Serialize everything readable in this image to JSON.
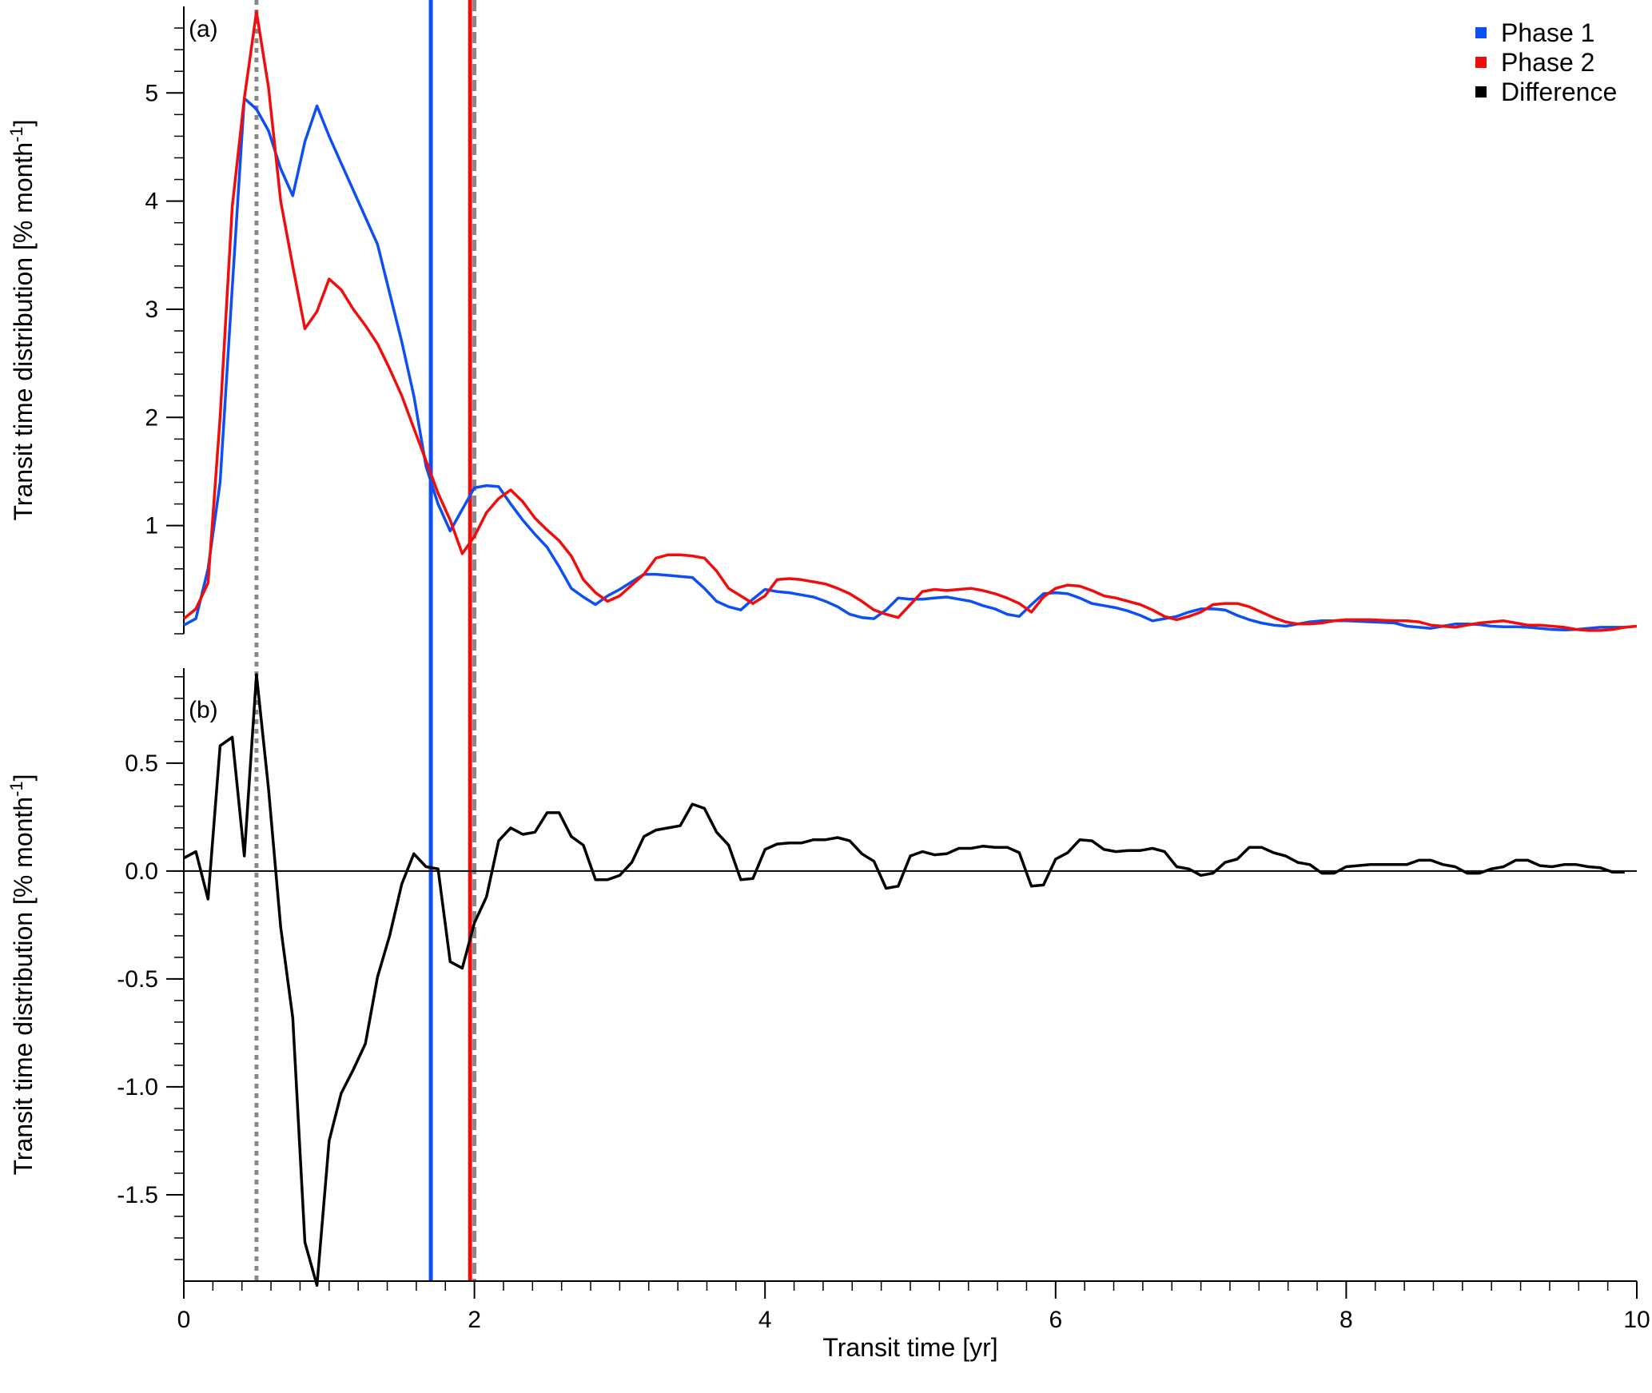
{
  "chart_data": {
    "type": "line",
    "xlabel": "Transit time [yr]",
    "xlim": [
      0,
      10
    ],
    "x_ticks": [
      0,
      2,
      4,
      6,
      8,
      10
    ],
    "x_tick_labels": [
      "0",
      "2",
      "4",
      "6",
      "8",
      "10"
    ],
    "x_step": 0.08333,
    "legend": {
      "placement": "top-right",
      "entries": [
        {
          "label": "Phase 1",
          "color": "#0d4ff2"
        },
        {
          "label": "Phase 2",
          "color": "#f20d0d"
        },
        {
          "label": "Difference",
          "color": "#000000"
        }
      ]
    },
    "vertical_markers": [
      {
        "x": 0.5,
        "style": "dotted",
        "color": "#888888"
      },
      {
        "x": 1.7,
        "style": "solid",
        "color": "#0d4ff2"
      },
      {
        "x": 1.97,
        "style": "solid",
        "color": "#f20d0d"
      },
      {
        "x": 2.0,
        "style": "dashed",
        "color": "#888888"
      }
    ],
    "panels": [
      {
        "label": "(a)",
        "ylabel": "Transit time distribution [% month",
        "ylabel_sup": "-1",
        "ylabel_end": "]",
        "ylim": [
          0,
          5.8
        ],
        "y_ticks": [
          1,
          2,
          3,
          4,
          5
        ],
        "y_tick_labels": [
          "1",
          "2",
          "3",
          "4",
          "5"
        ],
        "series": [
          {
            "name": "Phase 1",
            "color": "#0d4ff2",
            "values": [
              0.08,
              0.14,
              0.6,
              1.4,
              3.2,
              4.95,
              4.85,
              4.65,
              4.3,
              4.05,
              4.55,
              4.88,
              4.6,
              4.35,
              4.1,
              3.85,
              3.6,
              3.15,
              2.7,
              2.2,
              1.55,
              1.2,
              0.95,
              1.15,
              1.35,
              1.37,
              1.36,
              1.2,
              1.05,
              0.92,
              0.8,
              0.62,
              0.42,
              0.34,
              0.27,
              0.35,
              0.41,
              0.48,
              0.55,
              0.55,
              0.54,
              0.53,
              0.52,
              0.42,
              0.3,
              0.25,
              0.22,
              0.32,
              0.41,
              0.39,
              0.38,
              0.36,
              0.34,
              0.3,
              0.25,
              0.18,
              0.15,
              0.14,
              0.22,
              0.33,
              0.32,
              0.32,
              0.33,
              0.34,
              0.32,
              0.3,
              0.26,
              0.23,
              0.18,
              0.16,
              0.27,
              0.37,
              0.38,
              0.37,
              0.33,
              0.28,
              0.26,
              0.24,
              0.21,
              0.17,
              0.12,
              0.14,
              0.16,
              0.2,
              0.23,
              0.23,
              0.22,
              0.17,
              0.13,
              0.1,
              0.08,
              0.07,
              0.09,
              0.11,
              0.12,
              0.12,
              0.12,
              0.115,
              0.11,
              0.105,
              0.1,
              0.07,
              0.06,
              0.05,
              0.07,
              0.09,
              0.09,
              0.085,
              0.07,
              0.065,
              0.065,
              0.06,
              0.05,
              0.04,
              0.035,
              0.04,
              0.05,
              0.06,
              0.06,
              0.06
            ]
          },
          {
            "name": "Phase 2",
            "color": "#f20d0d",
            "values": [
              0.14,
              0.23,
              0.47,
              2.0,
              3.95,
              4.95,
              5.75,
              5.05,
              4.0,
              3.4,
              2.82,
              2.98,
              3.28,
              3.18,
              3.0,
              2.85,
              2.68,
              2.45,
              2.2,
              1.9,
              1.6,
              1.3,
              1.05,
              0.74,
              0.9,
              1.12,
              1.25,
              1.33,
              1.22,
              1.07,
              0.96,
              0.86,
              0.72,
              0.5,
              0.38,
              0.3,
              0.35,
              0.45,
              0.55,
              0.7,
              0.73,
              0.73,
              0.72,
              0.7,
              0.58,
              0.42,
              0.35,
              0.28,
              0.35,
              0.5,
              0.51,
              0.5,
              0.48,
              0.46,
              0.42,
              0.37,
              0.3,
              0.22,
              0.18,
              0.15,
              0.27,
              0.39,
              0.41,
              0.4,
              0.41,
              0.42,
              0.4,
              0.37,
              0.33,
              0.28,
              0.2,
              0.34,
              0.42,
              0.45,
              0.44,
              0.4,
              0.35,
              0.33,
              0.3,
              0.27,
              0.22,
              0.16,
              0.13,
              0.16,
              0.2,
              0.27,
              0.28,
              0.28,
              0.25,
              0.2,
              0.15,
              0.11,
              0.09,
              0.09,
              0.1,
              0.12,
              0.13,
              0.13,
              0.13,
              0.125,
              0.12,
              0.12,
              0.11,
              0.08,
              0.07,
              0.06,
              0.08,
              0.1,
              0.11,
              0.12,
              0.1,
              0.08,
              0.08,
              0.07,
              0.06,
              0.04,
              0.03,
              0.03,
              0.04,
              0.06,
              0.07
            ]
          }
        ]
      },
      {
        "label": "(b)",
        "ylabel": "Transit time distribution [% month",
        "ylabel_sup": "-1",
        "ylabel_end": "]",
        "ylim": [
          -1.9,
          0.94
        ],
        "y_ticks": [
          -1.5,
          -1.0,
          -0.5,
          0.0,
          0.5
        ],
        "y_tick_labels": [
          "-1.5",
          "-1.0",
          "-0.5",
          "0.0",
          "0.5"
        ],
        "zero_line": true,
        "series": [
          {
            "name": "Difference",
            "color": "#000000",
            "values": [
              0.06,
              0.09,
              -0.13,
              0.58,
              0.62,
              0.07,
              0.91,
              0.38,
              -0.26,
              -0.68,
              -1.72,
              -1.92,
              -1.25,
              -1.03,
              -0.92,
              -0.8,
              -0.49,
              -0.3,
              -0.06,
              0.08,
              0.02,
              0.01,
              -0.42,
              -0.45,
              -0.24,
              -0.12,
              0.14,
              0.2,
              0.17,
              0.18,
              0.27,
              0.27,
              0.16,
              0.12,
              -0.04,
              -0.04,
              -0.02,
              0.04,
              0.16,
              0.19,
              0.2,
              0.21,
              0.31,
              0.29,
              0.18,
              0.12,
              -0.04,
              -0.035,
              0.1,
              0.125,
              0.13,
              0.13,
              0.145,
              0.145,
              0.155,
              0.14,
              0.08,
              0.045,
              -0.08,
              -0.07,
              0.07,
              0.09,
              0.075,
              0.08,
              0.105,
              0.105,
              0.115,
              0.11,
              0.11,
              0.085,
              -0.07,
              -0.065,
              0.055,
              0.085,
              0.145,
              0.14,
              0.1,
              0.09,
              0.095,
              0.095,
              0.105,
              0.09,
              0.02,
              0.01,
              -0.02,
              -0.01,
              0.04,
              0.055,
              0.11,
              0.11,
              0.085,
              0.07,
              0.04,
              0.03,
              -0.01,
              -0.01,
              0.02,
              0.025,
              0.03,
              0.03,
              0.03,
              0.03,
              0.05,
              0.05,
              0.03,
              0.02,
              -0.01,
              -0.01,
              0.01,
              0.02,
              0.05,
              0.05,
              0.025,
              0.02,
              0.03,
              0.03,
              0.02,
              0.015,
              -0.005,
              -0.005
            ]
          }
        ]
      }
    ]
  }
}
